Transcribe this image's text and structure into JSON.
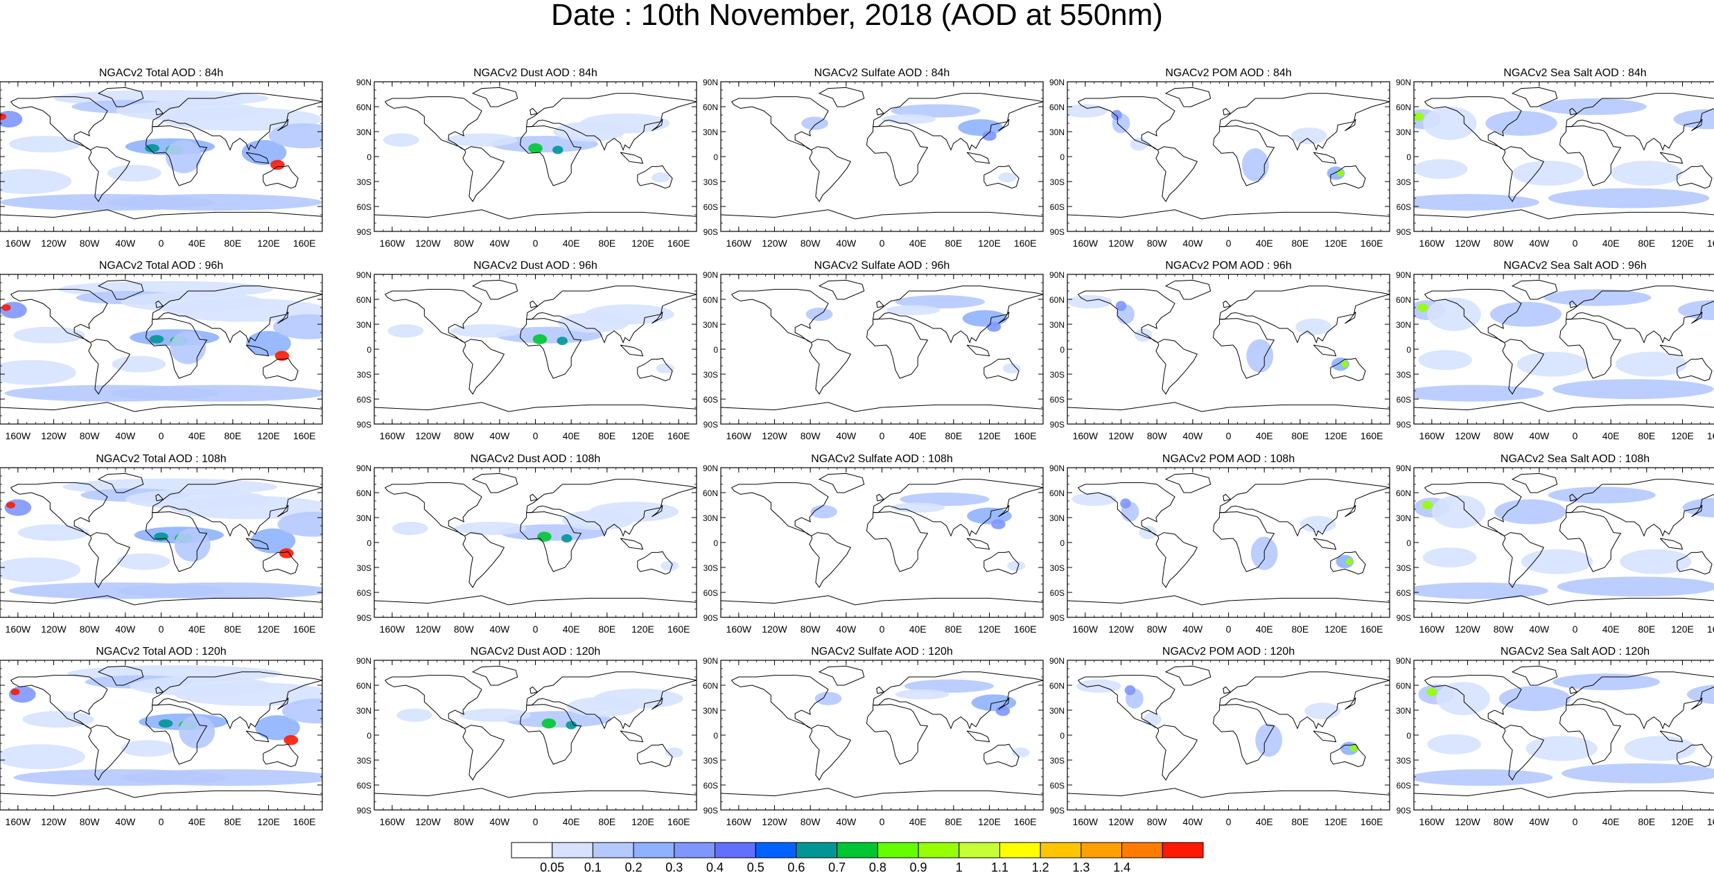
{
  "title": "Date : 10th November, 2018 (AOD at 550nm)",
  "chart_data": {
    "type": "heatmap",
    "title": "Date : 10th November, 2018 (AOD at 550nm)",
    "grid": false,
    "legend_placement": "bottom-center",
    "x_tick_labels": [
      "160W",
      "120W",
      "80W",
      "40W",
      "0",
      "40E",
      "80E",
      "120E",
      "160E"
    ],
    "y_tick_labels": [
      "90N",
      "60N",
      "30N",
      "0",
      "30S",
      "60S",
      "90S"
    ],
    "xlim": [
      -180,
      180
    ],
    "ylim": [
      -90,
      90
    ],
    "colorbar": {
      "labels": [
        "0.05",
        "0.1",
        "0.2",
        "0.3",
        "0.4",
        "0.5",
        "0.6",
        "0.7",
        "0.8",
        "0.9",
        "1",
        "1.1",
        "1.2",
        "1.3",
        "1.4"
      ],
      "colors": [
        "#ffffff",
        "#d6e2ff",
        "#b5c9ff",
        "#8eb2ff",
        "#7f96ff",
        "#6370ff",
        "#0063ff",
        "#009696",
        "#00c633",
        "#63ff00",
        "#96ff00",
        "#c6ff33",
        "#ffff00",
        "#ffc600",
        "#ffa000",
        "#ff7c00",
        "#ff1900"
      ]
    },
    "columns": [
      "Total",
      "Dust",
      "Sulfate",
      "POM",
      "Sea Salt"
    ],
    "rows": [
      "84h",
      "96h",
      "108h",
      "120h"
    ],
    "panels": [
      [
        "NGACv2 Total AOD : 84h",
        "NGACv2 Dust AOD : 84h",
        "NGACv2 Sulfate AOD : 84h",
        "NGACv2 POM AOD : 84h",
        "NGACv2 Sea Salt AOD : 84h"
      ],
      [
        "NGACv2 Total AOD : 96h",
        "NGACv2 Dust AOD : 96h",
        "NGACv2 Sulfate AOD : 96h",
        "NGACv2 POM AOD : 96h",
        "NGACv2 Sea Salt AOD : 96h"
      ],
      [
        "NGACv2 Total AOD : 108h",
        "NGACv2 Dust AOD : 108h",
        "NGACv2 Sulfate AOD : 108h",
        "NGACv2 POM AOD : 108h",
        "NGACv2 Sea Salt AOD : 108h"
      ],
      [
        "NGACv2 Total AOD : 120h",
        "NGACv2 Dust AOD : 120h",
        "NGACv2 Sulfate AOD : 120h",
        "NGACv2 POM AOD : 120h",
        "NGACv2 Sea Salt  AOD : 120h"
      ]
    ]
  }
}
